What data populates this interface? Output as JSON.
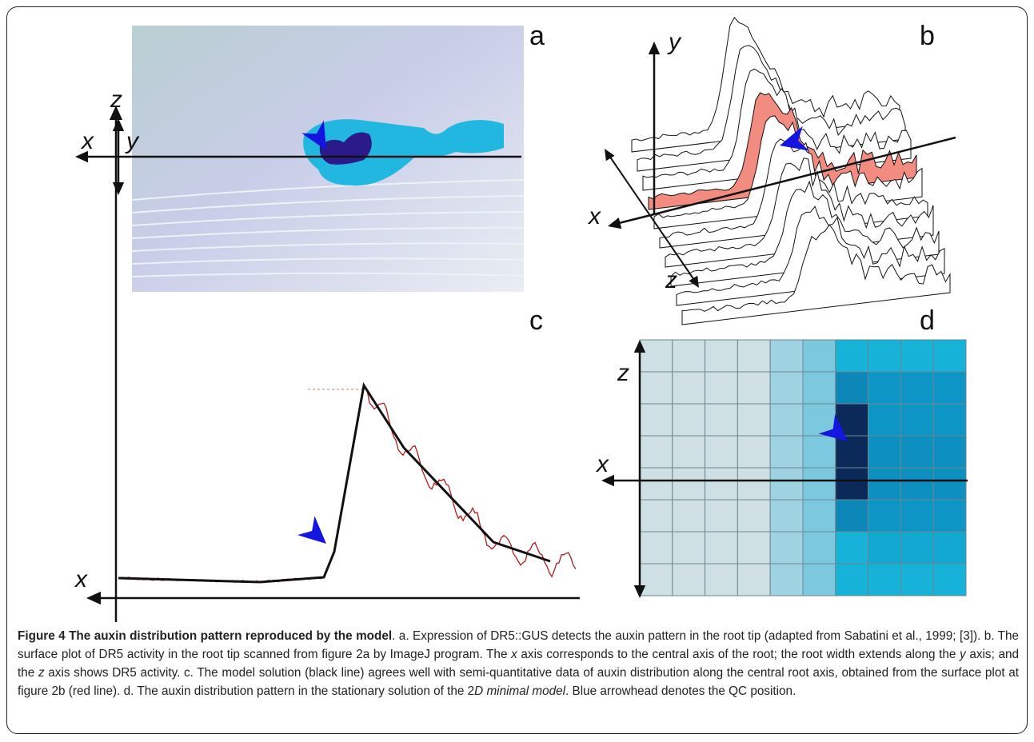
{
  "panels": [
    {
      "label": "a",
      "axis_labels": [
        "z",
        "x"
      ]
    },
    {
      "label": "b",
      "axis_labels": [
        "y",
        "x",
        "z"
      ]
    },
    {
      "label": "c",
      "axis_labels": [
        "y",
        "x"
      ]
    },
    {
      "label": "d",
      "axis_labels": [
        "z",
        "x"
      ]
    }
  ],
  "caption": {
    "title": "Figure 4 The auxin distribution pattern reproduced by the model",
    "text": [
      ". a. Expression of DR5::GUS detects the auxin pattern in the root tip (adapted from Sabatini et al., 1999; [3]). b. The surface plot of DR5 activity in the root tip scanned from figure 2a by ImageJ program. The ",
      "x",
      " axis corresponds to the central axis of the root; the root width extends along the ",
      "y",
      " axis; and the ",
      "z",
      " axis shows DR5 activity. c. The model solution (black line) agrees well with semi-quantitative data of auxin distribution along the central root axis, obtained from the surface plot at figure 2b (red line). d. The auxin distribution pattern in the stationary solution of the 2",
      "D minimal model",
      ". Blue arrowhead denotes the QC position."
    ]
  }
}
